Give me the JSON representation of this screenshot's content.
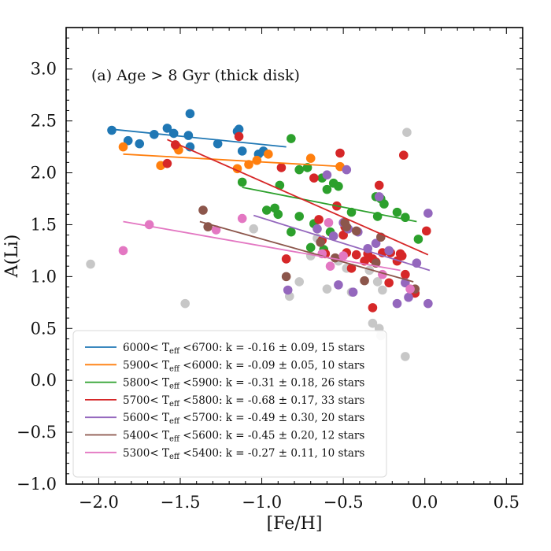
{
  "chart_data": {
    "type": "scatter",
    "title": "(a) Age > 8 Gyr (thick disk)",
    "xlabel": "[Fe/H]",
    "ylabel": "A(Li)",
    "xlim": [
      -2.2,
      0.6
    ],
    "ylim": [
      -1.0,
      3.4
    ],
    "xticks": [
      -2.0,
      -1.5,
      -1.0,
      -0.5,
      0.0,
      0.5
    ],
    "xtick_labels": [
      "−2.0",
      "−1.5",
      "−1.0",
      "−0.5",
      "0.0",
      "0.5"
    ],
    "yticks": [
      -1.0,
      -0.5,
      0.0,
      0.5,
      1.0,
      1.5,
      2.0,
      2.5,
      3.0
    ],
    "ytick_labels": [
      "−1.0",
      "−0.5",
      "0.0",
      "0.5",
      "1.0",
      "1.5",
      "2.0",
      "2.5",
      "3.0"
    ],
    "legend_position": "lower-left",
    "series": [
      {
        "name": "6000-6700",
        "color": "#1f77b4",
        "legend": {
          "pre": "6000< T",
          "sub": "eff",
          "post": " <6700: k = -0.16 ± 0.09, 15 stars"
        },
        "fit": [
          [
            -1.92,
            2.42
          ],
          [
            -0.85,
            2.25
          ]
        ],
        "points": [
          [
            -1.92,
            2.41
          ],
          [
            -1.82,
            2.31
          ],
          [
            -1.75,
            2.28
          ],
          [
            -1.66,
            2.37
          ],
          [
            -1.58,
            2.43
          ],
          [
            -1.54,
            2.38
          ],
          [
            -1.45,
            2.36
          ],
          [
            -1.44,
            2.57
          ],
          [
            -1.44,
            2.25
          ],
          [
            -1.27,
            2.28
          ],
          [
            -1.15,
            2.4
          ],
          [
            -1.14,
            2.42
          ],
          [
            -1.12,
            2.21
          ],
          [
            -1.02,
            2.18
          ],
          [
            -0.99,
            2.21
          ]
        ]
      },
      {
        "name": "5900-6000",
        "color": "#ff7f0e",
        "legend": {
          "pre": "5900< T",
          "sub": "eff",
          "post": " <6000: k = -0.09 ± 0.05, 10 stars"
        },
        "fit": [
          [
            -1.85,
            2.18
          ],
          [
            -0.5,
            2.06
          ]
        ],
        "points": [
          [
            -1.85,
            2.25
          ],
          [
            -1.62,
            2.07
          ],
          [
            -1.52,
            2.25
          ],
          [
            -1.51,
            2.22
          ],
          [
            -1.15,
            2.04
          ],
          [
            -1.08,
            2.08
          ],
          [
            -1.03,
            2.12
          ],
          [
            -0.96,
            2.18
          ],
          [
            -0.7,
            2.14
          ],
          [
            -0.52,
            2.06
          ]
        ]
      },
      {
        "name": "5800-5900",
        "color": "#2ca02c",
        "legend": {
          "pre": "5800< T",
          "sub": "eff",
          "post": " <5900: k = -0.31 ± 0.18, 26 stars"
        },
        "fit": [
          [
            -1.12,
            1.86
          ],
          [
            -0.05,
            1.53
          ]
        ],
        "points": [
          [
            -1.12,
            1.91
          ],
          [
            -0.97,
            1.64
          ],
          [
            -0.92,
            1.66
          ],
          [
            -0.89,
            1.88
          ],
          [
            -0.82,
            2.33
          ],
          [
            -0.82,
            1.43
          ],
          [
            -0.77,
            1.58
          ],
          [
            -0.77,
            2.03
          ],
          [
            -0.72,
            2.05
          ],
          [
            -0.7,
            1.28
          ],
          [
            -0.68,
            1.51
          ],
          [
            -0.63,
            1.95
          ],
          [
            -0.62,
            1.26
          ],
          [
            -0.6,
            1.84
          ],
          [
            -0.58,
            1.43
          ],
          [
            -0.56,
            1.9
          ],
          [
            -0.53,
            1.87
          ],
          [
            -0.45,
            1.62
          ],
          [
            -0.3,
            1.77
          ],
          [
            -0.29,
            1.58
          ],
          [
            -0.27,
            1.75
          ],
          [
            -0.25,
            1.7
          ],
          [
            -0.17,
            1.62
          ],
          [
            -0.12,
            1.57
          ],
          [
            -0.04,
            1.36
          ],
          [
            -0.9,
            1.6
          ]
        ]
      },
      {
        "name": "5700-5800",
        "color": "#d62728",
        "legend": {
          "pre": "5700< T",
          "sub": "eff",
          "post": " <5800: k = -0.68 ± 0.17, 33 stars"
        },
        "fit": [
          [
            -1.58,
            2.32
          ],
          [
            0.02,
            1.21
          ]
        ],
        "points": [
          [
            -1.58,
            2.09
          ],
          [
            -1.53,
            2.27
          ],
          [
            -1.14,
            2.35
          ],
          [
            -0.88,
            2.05
          ],
          [
            -0.85,
            1.17
          ],
          [
            -0.68,
            1.95
          ],
          [
            -0.65,
            1.55
          ],
          [
            -0.63,
            1.35
          ],
          [
            -0.61,
            1.22
          ],
          [
            -0.54,
            1.68
          ],
          [
            -0.52,
            2.19
          ],
          [
            -0.5,
            1.4
          ],
          [
            -0.49,
            1.48
          ],
          [
            -0.48,
            1.23
          ],
          [
            -0.42,
            1.21
          ],
          [
            -0.37,
            1.15
          ],
          [
            -0.35,
            1.22
          ],
          [
            -0.32,
            0.7
          ],
          [
            -0.32,
            1.17
          ],
          [
            -0.28,
            1.88
          ],
          [
            -0.26,
            1.23
          ],
          [
            -0.22,
            0.94
          ],
          [
            -0.21,
            1.23
          ],
          [
            -0.17,
            1.15
          ],
          [
            -0.15,
            1.22
          ],
          [
            -0.14,
            1.2
          ],
          [
            -0.13,
            2.17
          ],
          [
            -0.12,
            1.02
          ],
          [
            -0.08,
            0.86
          ],
          [
            -0.06,
            0.84
          ],
          [
            0.01,
            1.44
          ],
          [
            -0.3,
            1.14
          ],
          [
            -0.45,
            1.08
          ]
        ]
      },
      {
        "name": "5600-5700",
        "color": "#9467bd",
        "legend": {
          "pre": "5600< T",
          "sub": "eff",
          "post": " <5700: k = -0.49 ± 0.30, 20 stars"
        },
        "fit": [
          [
            -1.05,
            1.59
          ],
          [
            0.03,
            1.06
          ]
        ],
        "points": [
          [
            -0.84,
            0.87
          ],
          [
            -0.66,
            1.46
          ],
          [
            -0.6,
            1.98
          ],
          [
            -0.56,
            1.39
          ],
          [
            -0.53,
            0.92
          ],
          [
            -0.5,
            1.52
          ],
          [
            -0.48,
            2.03
          ],
          [
            -0.47,
            1.46
          ],
          [
            -0.44,
            0.85
          ],
          [
            -0.41,
            1.43
          ],
          [
            -0.35,
            1.27
          ],
          [
            -0.3,
            1.32
          ],
          [
            -0.28,
            1.77
          ],
          [
            -0.22,
            1.25
          ],
          [
            -0.17,
            0.74
          ],
          [
            -0.12,
            0.94
          ],
          [
            -0.1,
            0.8
          ],
          [
            -0.05,
            1.13
          ],
          [
            0.02,
            1.61
          ],
          [
            0.02,
            0.74
          ]
        ]
      },
      {
        "name": "5400-5600",
        "color": "#8c564b",
        "legend": {
          "pre": "5400< T",
          "sub": "eff",
          "post": " <5600: k = -0.45 ± 0.20, 12 stars"
        },
        "fit": [
          [
            -1.38,
            1.53
          ],
          [
            -0.07,
            0.95
          ]
        ],
        "points": [
          [
            -1.36,
            1.64
          ],
          [
            -1.33,
            1.48
          ],
          [
            -0.85,
            1.0
          ],
          [
            -0.64,
            1.33
          ],
          [
            -0.55,
            1.18
          ],
          [
            -0.49,
            1.52
          ],
          [
            -0.48,
            1.48
          ],
          [
            -0.42,
            1.44
          ],
          [
            -0.37,
            0.96
          ],
          [
            -0.3,
            1.13
          ],
          [
            -0.27,
            1.38
          ],
          [
            -0.06,
            0.88
          ]
        ]
      },
      {
        "name": "5300-5400",
        "color": "#e377c2",
        "legend": {
          "pre": "5300< T",
          "sub": "eff",
          "post": " <5400: k = -0.27 ± 0.11, 10 stars"
        },
        "fit": [
          [
            -1.85,
            1.53
          ],
          [
            -0.15,
            1.06
          ]
        ],
        "points": [
          [
            -1.85,
            1.25
          ],
          [
            -1.69,
            1.5
          ],
          [
            -1.28,
            1.45
          ],
          [
            -1.12,
            1.56
          ],
          [
            -0.63,
            1.22
          ],
          [
            -0.59,
            1.52
          ],
          [
            -0.58,
            1.1
          ],
          [
            -0.5,
            1.2
          ],
          [
            -0.26,
            1.02
          ],
          [
            -0.09,
            0.88
          ]
        ]
      },
      {
        "name": "other",
        "color": "#c7c7c7",
        "points": [
          [
            -2.05,
            1.12
          ],
          [
            -1.47,
            0.74
          ],
          [
            -1.05,
            1.46
          ],
          [
            -0.83,
            0.81
          ],
          [
            -0.77,
            0.95
          ],
          [
            -0.7,
            1.2
          ],
          [
            -0.66,
            1.37
          ],
          [
            -0.6,
            0.88
          ],
          [
            -0.53,
            1.15
          ],
          [
            -0.48,
            1.08
          ],
          [
            -0.45,
            0.85
          ],
          [
            -0.34,
            1.06
          ],
          [
            -0.32,
            0.55
          ],
          [
            -0.29,
            0.95
          ],
          [
            -0.28,
            0.5
          ],
          [
            -0.26,
            0.87
          ],
          [
            -0.11,
            2.39
          ],
          [
            -0.12,
            0.23
          ],
          [
            -0.27,
            0.43
          ]
        ]
      }
    ]
  }
}
